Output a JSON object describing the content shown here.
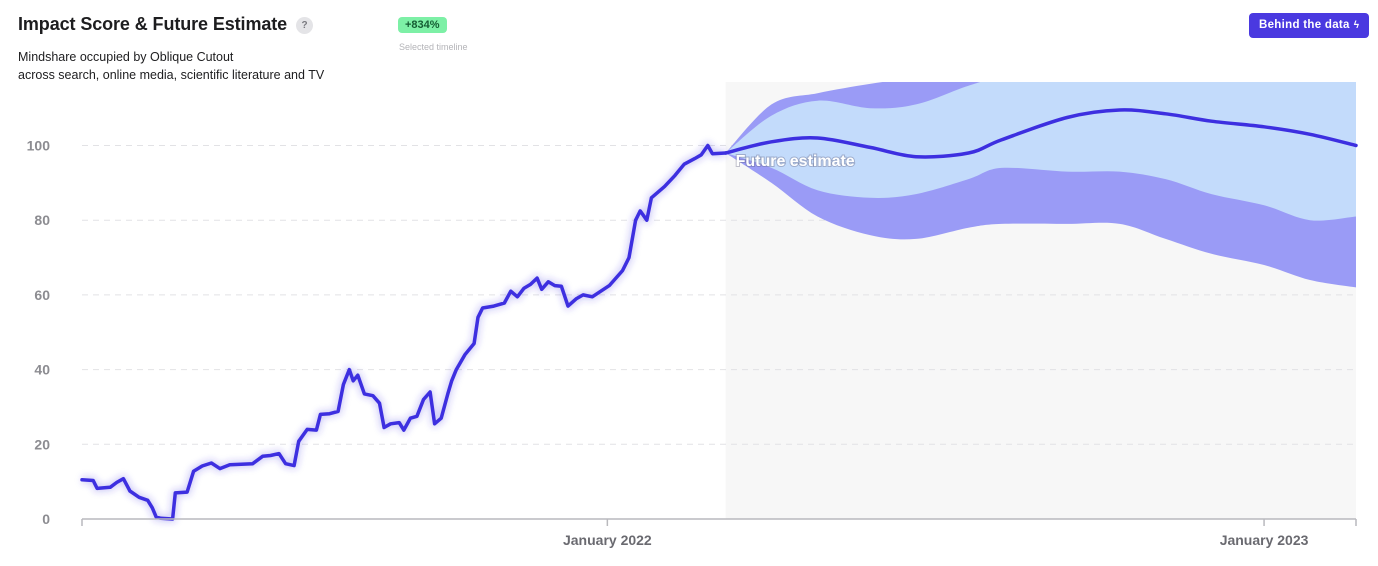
{
  "header": {
    "title": "Impact Score & Future Estimate",
    "help_icon": "question-mark-icon",
    "subtitle_line1": "Mindshare occupied by Oblique Cutout",
    "subtitle_line2": "across search, online media, scientific literature and TV",
    "growth_badge": "+834%",
    "growth_caption": "Selected timeline",
    "button_label": "Behind the data",
    "button_icon": "bolt-icon"
  },
  "colors": {
    "line": "#3d2fe0",
    "band_outer": "#9a9bf6",
    "band_inner": "#c3dbfb",
    "forecast_bg": "#f7f7f7",
    "badge_bg": "#7df0a6",
    "accent": "#4a39e0"
  },
  "chart_data": {
    "type": "line",
    "y_ticks": [
      0,
      20,
      40,
      60,
      80,
      100
    ],
    "x_tick_labels": [
      {
        "label": "January 2022",
        "t": 2022.0
      },
      {
        "label": "January 2023",
        "t": 2023.0
      }
    ],
    "xlim": [
      2021.2,
      2023.14
    ],
    "ylim": [
      0,
      118
    ],
    "grid": "horizontal dashed",
    "annotation": "Future estimate",
    "forecast_start": 2022.18,
    "series": [
      {
        "type": "historical",
        "points": [
          [
            2021.2,
            10.5
          ],
          [
            2021.217,
            10.3
          ],
          [
            2021.223,
            8.2
          ],
          [
            2021.243,
            8.5
          ],
          [
            2021.253,
            9.8
          ],
          [
            2021.263,
            10.8
          ],
          [
            2021.273,
            7.5
          ],
          [
            2021.287,
            5.8
          ],
          [
            2021.3,
            5.0
          ],
          [
            2021.307,
            3.0
          ],
          [
            2021.313,
            0.5
          ],
          [
            2021.32,
            0.2
          ],
          [
            2021.338,
            0.0
          ],
          [
            2021.342,
            7.0
          ],
          [
            2021.36,
            7.2
          ],
          [
            2021.37,
            12.8
          ],
          [
            2021.383,
            14.2
          ],
          [
            2021.397,
            15.0
          ],
          [
            2021.41,
            13.5
          ],
          [
            2021.425,
            14.5
          ],
          [
            2021.46,
            14.8
          ],
          [
            2021.475,
            16.8
          ],
          [
            2021.487,
            17.0
          ],
          [
            2021.5,
            17.5
          ],
          [
            2021.51,
            14.8
          ],
          [
            2021.523,
            14.3
          ],
          [
            2021.53,
            20.8
          ],
          [
            2021.543,
            24.0
          ],
          [
            2021.557,
            23.8
          ],
          [
            2021.563,
            28.0
          ],
          [
            2021.577,
            28.2
          ],
          [
            2021.59,
            28.8
          ],
          [
            2021.598,
            36.0
          ],
          [
            2021.607,
            40.0
          ],
          [
            2021.613,
            37.0
          ],
          [
            2021.62,
            38.5
          ],
          [
            2021.63,
            33.5
          ],
          [
            2021.643,
            33.0
          ],
          [
            2021.653,
            31.0
          ],
          [
            2021.66,
            24.5
          ],
          [
            2021.67,
            25.5
          ],
          [
            2021.683,
            25.8
          ],
          [
            2021.69,
            23.8
          ],
          [
            2021.7,
            27.0
          ],
          [
            2021.71,
            27.5
          ],
          [
            2021.72,
            32.0
          ],
          [
            2021.73,
            34.0
          ],
          [
            2021.737,
            25.5
          ],
          [
            2021.747,
            27.0
          ],
          [
            2021.757,
            33.5
          ],
          [
            2021.763,
            37.0
          ],
          [
            2021.77,
            40.0
          ],
          [
            2021.783,
            44.0
          ],
          [
            2021.797,
            47.0
          ],
          [
            2021.803,
            54.0
          ],
          [
            2021.81,
            56.5
          ],
          [
            2021.827,
            57.0
          ],
          [
            2021.843,
            57.8
          ],
          [
            2021.853,
            61.0
          ],
          [
            2021.863,
            59.5
          ],
          [
            2021.873,
            61.8
          ],
          [
            2021.883,
            62.8
          ],
          [
            2021.893,
            64.5
          ],
          [
            2021.9,
            61.5
          ],
          [
            2021.91,
            63.5
          ],
          [
            2021.92,
            62.5
          ],
          [
            2021.93,
            62.3
          ],
          [
            2021.94,
            57.0
          ],
          [
            2021.953,
            59.0
          ],
          [
            2021.963,
            60.0
          ],
          [
            2021.977,
            59.5
          ],
          [
            2021.99,
            61.0
          ],
          [
            2022.003,
            62.5
          ],
          [
            2022.013,
            64.5
          ],
          [
            2022.023,
            66.5
          ],
          [
            2022.033,
            70.0
          ],
          [
            2022.043,
            80.0
          ],
          [
            2022.05,
            82.5
          ],
          [
            2022.06,
            80.0
          ],
          [
            2022.067,
            86.0
          ],
          [
            2022.087,
            89.0
          ],
          [
            2022.103,
            92.0
          ],
          [
            2022.117,
            95.0
          ],
          [
            2022.133,
            96.5
          ],
          [
            2022.143,
            97.5
          ],
          [
            2022.153,
            100.0
          ],
          [
            2022.16,
            97.8
          ],
          [
            2022.18,
            98.0
          ]
        ]
      },
      {
        "type": "forecast",
        "x": [
          2022.18,
          2022.25,
          2022.32,
          2022.4,
          2022.47,
          2022.55,
          2022.6,
          2022.7,
          2022.78,
          2022.85,
          2022.92,
          2023.0,
          2023.07,
          2023.14
        ],
        "mean": [
          98.0,
          101.0,
          102.0,
          99.5,
          97.0,
          98.0,
          101.5,
          107.5,
          109.5,
          108.5,
          106.5,
          105.0,
          103.0,
          100.0
        ],
        "inner_upper": [
          98.0,
          108.0,
          112.0,
          110.0,
          111.0,
          116.0,
          118.0,
          118.0,
          118.0,
          118.0,
          118.0,
          118.0,
          118.0,
          118.0
        ],
        "inner_lower": [
          98.0,
          94.0,
          88.0,
          86.0,
          87.0,
          91.0,
          94.0,
          93.0,
          93.0,
          91.0,
          87.0,
          84.0,
          80.0,
          81.0
        ],
        "outer_upper": [
          98.0,
          111.0,
          114.0,
          116.5,
          118.0,
          118.0,
          118.0,
          118.0,
          118.0,
          118.0,
          118.0,
          118.0,
          118.0,
          118.0
        ],
        "outer_lower": [
          98.0,
          90.0,
          81.0,
          76.0,
          75.0,
          78.0,
          79.0,
          79.0,
          79.0,
          75.0,
          71.0,
          68.0,
          64.0,
          62.0
        ]
      }
    ]
  }
}
